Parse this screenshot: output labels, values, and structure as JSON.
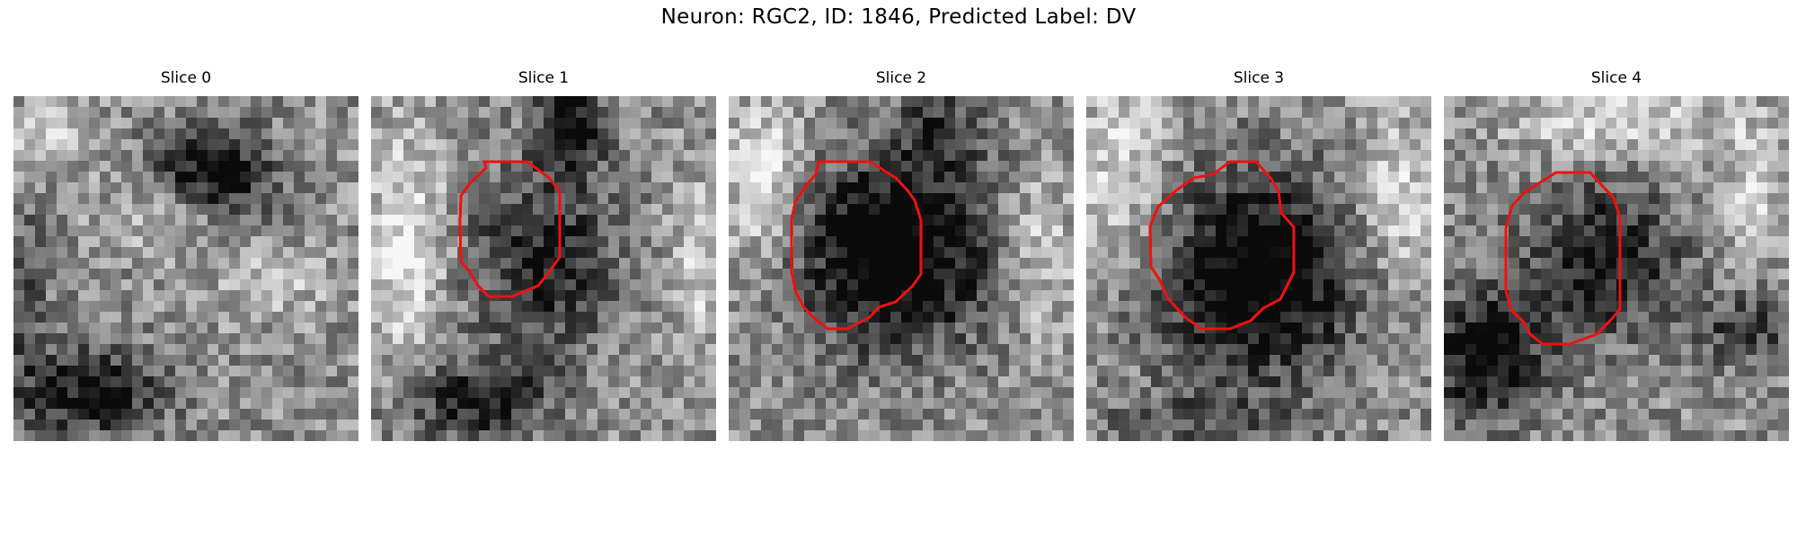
{
  "figure": {
    "title": "Neuron: RGC2, ID: 1846, Predicted Label: DV",
    "contour_color": "#ee1111"
  },
  "panels": [
    {
      "label": "Slice 0",
      "has_contour": false,
      "dark_blobs": [
        [
          0.58,
          0.22,
          0.17,
          0.14,
          0.55
        ],
        [
          0.22,
          0.86,
          0.22,
          0.13,
          0.5
        ],
        [
          0.02,
          0.55,
          0.08,
          0.25,
          0.25
        ]
      ],
      "light_blobs": [
        [
          0.1,
          0.12,
          0.14,
          0.1,
          0.25
        ],
        [
          0.45,
          0.35,
          0.18,
          0.1,
          0.2
        ],
        [
          0.75,
          0.55,
          0.18,
          0.1,
          0.2
        ]
      ]
    },
    {
      "label": "Slice 1",
      "has_contour": true,
      "dark_blobs": [
        [
          0.5,
          0.48,
          0.21,
          0.25,
          0.45
        ],
        [
          0.58,
          0.1,
          0.1,
          0.12,
          0.6
        ],
        [
          0.3,
          0.88,
          0.22,
          0.12,
          0.45
        ]
      ],
      "light_blobs": [
        [
          0.1,
          0.45,
          0.12,
          0.35,
          0.35
        ],
        [
          0.95,
          0.5,
          0.08,
          0.25,
          0.25
        ]
      ]
    },
    {
      "label": "Slice 2",
      "has_contour": true,
      "dark_blobs": [
        [
          0.48,
          0.45,
          0.27,
          0.27,
          0.72
        ],
        [
          0.62,
          0.1,
          0.14,
          0.12,
          0.3
        ]
      ],
      "light_blobs": [
        [
          0.1,
          0.25,
          0.12,
          0.25,
          0.35
        ],
        [
          0.9,
          0.45,
          0.1,
          0.25,
          0.25
        ]
      ]
    },
    {
      "label": "Slice 3",
      "has_contour": true,
      "dark_blobs": [
        [
          0.5,
          0.52,
          0.28,
          0.28,
          0.72
        ],
        [
          0.3,
          0.95,
          0.3,
          0.1,
          0.2
        ]
      ],
      "light_blobs": [
        [
          0.1,
          0.2,
          0.14,
          0.25,
          0.3
        ],
        [
          0.9,
          0.3,
          0.12,
          0.25,
          0.3
        ]
      ]
    },
    {
      "label": "Slice 4",
      "has_contour": true,
      "dark_blobs": [
        [
          0.46,
          0.48,
          0.22,
          0.22,
          0.5
        ],
        [
          0.12,
          0.75,
          0.16,
          0.18,
          0.6
        ],
        [
          0.88,
          0.68,
          0.14,
          0.1,
          0.35
        ]
      ],
      "light_blobs": [
        [
          0.5,
          0.08,
          0.3,
          0.1,
          0.3
        ],
        [
          0.9,
          0.25,
          0.1,
          0.2,
          0.25
        ]
      ]
    }
  ]
}
